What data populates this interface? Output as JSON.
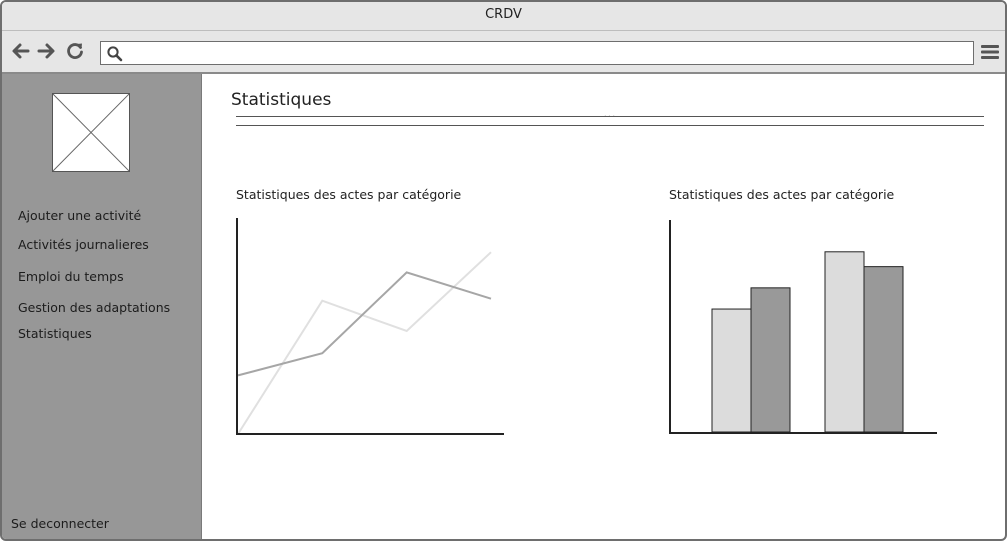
{
  "window": {
    "title": "CRDV"
  },
  "toolbar": {
    "back_icon": "arrow-left-icon",
    "forward_icon": "arrow-right-icon",
    "reload_icon": "refresh-icon",
    "search_icon": "search-icon",
    "menu_icon": "hamburger-menu-icon",
    "url_value": ""
  },
  "sidebar": {
    "logo": "image-placeholder",
    "items": [
      {
        "label": "Ajouter une activité"
      },
      {
        "label": "Activités journalieres"
      },
      {
        "label": "Emploi du temps"
      },
      {
        "label": "Gestion des adaptations"
      },
      {
        "label": "Statistiques"
      }
    ],
    "logout_label": "Se deconnecter"
  },
  "main": {
    "title": "Statistiques",
    "separator_text": "..."
  },
  "colors": {
    "sidebar_bg": "#979797",
    "series_dark": "#a6a6a6",
    "series_light": "#e0e0e0",
    "bar_light": "#dcdcdc",
    "bar_dark": "#999999"
  },
  "chart_data": [
    {
      "type": "line",
      "title": "Statistiques des actes par catégorie",
      "xlabel": "",
      "ylabel": "",
      "x": [
        0,
        1,
        2,
        3
      ],
      "xlim": [
        0,
        3
      ],
      "ylim": [
        0,
        100
      ],
      "grid": false,
      "series": [
        {
          "color": "#e0e0e0",
          "values": [
            0,
            66,
            51,
            90
          ]
        },
        {
          "color": "#a6a6a6",
          "values": [
            29,
            40,
            80,
            67
          ]
        }
      ]
    },
    {
      "type": "bar",
      "title": "Statistiques des actes par catégorie",
      "xlabel": "",
      "ylabel": "",
      "categories": [
        "",
        ""
      ],
      "ylim": [
        0,
        100
      ],
      "grid": false,
      "series": [
        {
          "color": "#dcdcdc",
          "values": [
            58,
            85
          ]
        },
        {
          "color": "#999999",
          "values": [
            68,
            78
          ]
        }
      ]
    }
  ]
}
